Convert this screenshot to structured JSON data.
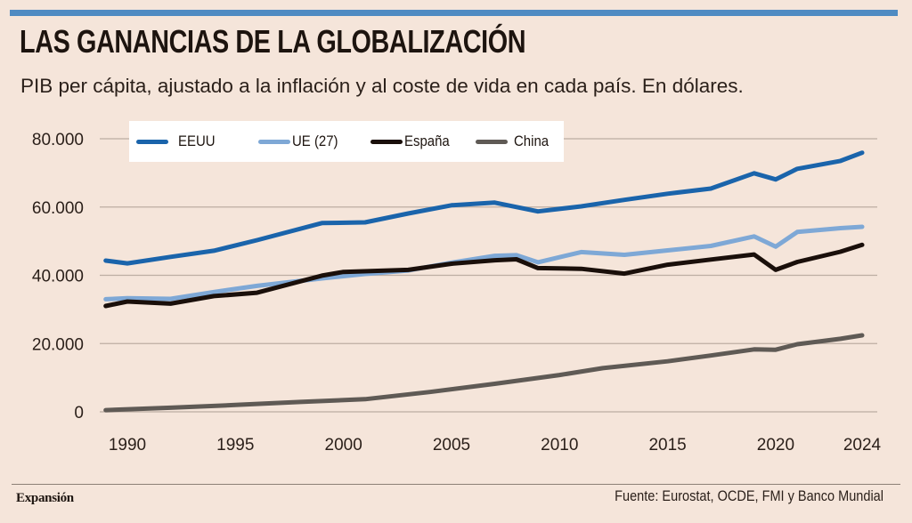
{
  "header": {
    "title": "LAS GANANCIAS DE LA GLOBALIZACIÓN",
    "subtitle": "PIB per cápita, ajustado a la inflación y al coste de vida en cada país. En dólares."
  },
  "footer": {
    "brand": "Expansión",
    "source": "Fuente: Eurostat, OCDE, FMI y Banco Mundial"
  },
  "colors": {
    "accent_bar": "#4f8bc2",
    "background": "#f5e5da",
    "gridline": "#bcada2"
  },
  "chart_data": {
    "type": "line",
    "title": "LAS GANANCIAS DE LA GLOBALIZACIÓN",
    "subtitle": "PIB per cápita, ajustado a la inflación y al coste de vida en cada país. En dólares.",
    "xlabel": "",
    "ylabel": "",
    "xlim": [
      1989,
      2024
    ],
    "ylim": [
      0,
      80000
    ],
    "grid": true,
    "legend_position": "top-left",
    "x_ticks": [
      1990,
      1995,
      2000,
      2005,
      2010,
      2015,
      2020,
      2024
    ],
    "x_tick_labels": [
      "1990",
      "1995",
      "2000",
      "2005",
      "2010",
      "2015",
      "2020",
      "2024"
    ],
    "y_ticks": [
      0,
      20000,
      40000,
      60000,
      80000
    ],
    "y_tick_labels": [
      "0",
      "20.000",
      "40.000",
      "60.000",
      "80.000"
    ],
    "series": [
      {
        "name": "EEUU",
        "color": "#1a64ab",
        "x": [
          1989,
          1990,
          1992,
          1994,
          1996,
          1999,
          2001,
          2003,
          2005,
          2007,
          2009,
          2011,
          2013,
          2015,
          2017,
          2019,
          2020,
          2021,
          2023,
          2024
        ],
        "values": [
          44300,
          43500,
          45400,
          47200,
          50300,
          55300,
          55500,
          58100,
          60500,
          61300,
          58700,
          60200,
          62100,
          63900,
          65400,
          69900,
          68100,
          71200,
          73500,
          75900
        ]
      },
      {
        "name": "UE (27)",
        "color": "#7ea8d6",
        "x": [
          1989,
          1990,
          1992,
          1994,
          1996,
          1999,
          2001,
          2003,
          2005,
          2007,
          2008,
          2009,
          2011,
          2013,
          2015,
          2017,
          2019,
          2020,
          2021,
          2023,
          2024
        ],
        "values": [
          33000,
          33300,
          33100,
          35100,
          36900,
          39100,
          40400,
          41400,
          43700,
          45700,
          45900,
          43800,
          46800,
          46000,
          47300,
          48600,
          51400,
          48400,
          52700,
          53800,
          54200
        ]
      },
      {
        "name": "España",
        "color": "#1a0f0a",
        "x": [
          1989,
          1990,
          1992,
          1994,
          1996,
          1999,
          2000,
          2003,
          2005,
          2007,
          2008,
          2009,
          2011,
          2013,
          2015,
          2017,
          2019,
          2020,
          2021,
          2023,
          2024
        ],
        "values": [
          31000,
          32300,
          31700,
          33900,
          34900,
          39900,
          41000,
          41600,
          43400,
          44400,
          44700,
          42100,
          41900,
          40500,
          43100,
          44600,
          46100,
          41600,
          43900,
          46900,
          48900
        ]
      },
      {
        "name": "China",
        "color": "#5f5a55",
        "x": [
          1989,
          1992,
          1995,
          1998,
          2001,
          2004,
          2007,
          2010,
          2012,
          2015,
          2017,
          2019,
          2020,
          2021,
          2023,
          2024
        ],
        "values": [
          500,
          1200,
          2000,
          2900,
          3700,
          5800,
          8200,
          10800,
          12800,
          14800,
          16500,
          18300,
          18200,
          19800,
          21400,
          22400
        ]
      }
    ]
  }
}
